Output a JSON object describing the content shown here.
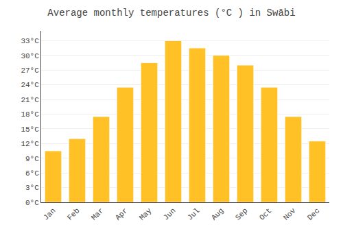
{
  "chart_data": {
    "type": "bar",
    "title": "Average monthly temperatures (°C ) in Swābi",
    "categories": [
      "Jan",
      "Feb",
      "Mar",
      "Apr",
      "May",
      "Jun",
      "Jul",
      "Aug",
      "Sep",
      "Oct",
      "Nov",
      "Dec"
    ],
    "values": [
      10.5,
      13.0,
      17.5,
      23.5,
      28.5,
      33.0,
      31.5,
      30.0,
      28.0,
      23.5,
      17.5,
      12.5
    ],
    "color": "#FFC125",
    "ylim": [
      0,
      35
    ],
    "yticks": [
      {
        "value": 0,
        "label": "0°C"
      },
      {
        "value": 3,
        "label": "3°C"
      },
      {
        "value": 6,
        "label": "6°C"
      },
      {
        "value": 9,
        "label": "9°C"
      },
      {
        "value": 12,
        "label": "12°C"
      },
      {
        "value": 15,
        "label": "15°C"
      },
      {
        "value": 18,
        "label": "18°C"
      },
      {
        "value": 21,
        "label": "21°C"
      },
      {
        "value": 24,
        "label": "24°C"
      },
      {
        "value": 27,
        "label": "27°C"
      },
      {
        "value": 30,
        "label": "30°C"
      },
      {
        "value": 33,
        "label": "33°C"
      }
    ],
    "grid": true
  }
}
